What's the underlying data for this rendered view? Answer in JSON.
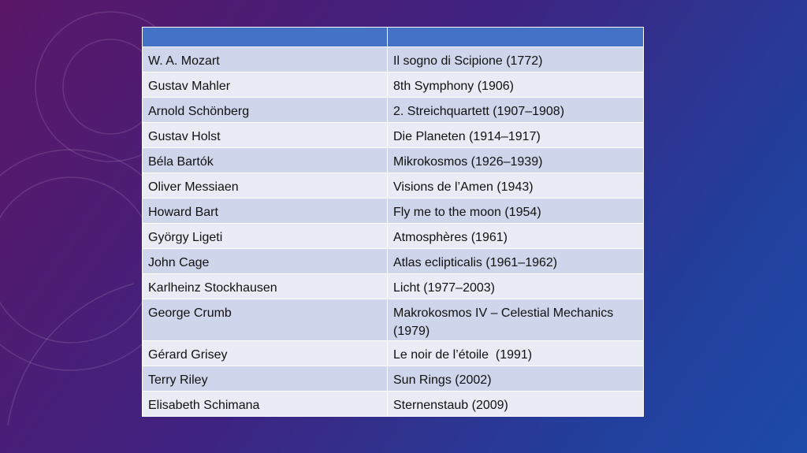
{
  "table": {
    "rows": [
      [
        "W. A. Mozart",
        "Il sogno di Scipione (1772)"
      ],
      [
        "Gustav Mahler",
        "8th Symphony (1906)"
      ],
      [
        "Arnold Schönberg",
        "2. Streichquartett (1907–1908)"
      ],
      [
        "Gustav Holst",
        "Die Planeten (1914–1917)"
      ],
      [
        "Béla Bartók",
        "Mikrokosmos (1926–1939)"
      ],
      [
        "Oliver Messiaen",
        "Visions de l’Amen (1943)"
      ],
      [
        "Howard Bart",
        "Fly me to the moon (1954)"
      ],
      [
        "György Ligeti",
        "Atmosphères (1961)"
      ],
      [
        "John Cage",
        "Atlas eclipticalis (1961–1962)"
      ],
      [
        "Karlheinz Stockhausen",
        "Licht (1977–2003)"
      ],
      [
        "George Crumb",
        "Makrokosmos IV – Celestial Mechanics (1979)"
      ],
      [
        "Gérard Grisey",
        "Le noir de l’étoile  (1991)"
      ],
      [
        "Terry Riley",
        "Sun Rings (2002)"
      ],
      [
        "Elisabeth Schimana",
        "Sternenstaub (2009)"
      ]
    ]
  }
}
